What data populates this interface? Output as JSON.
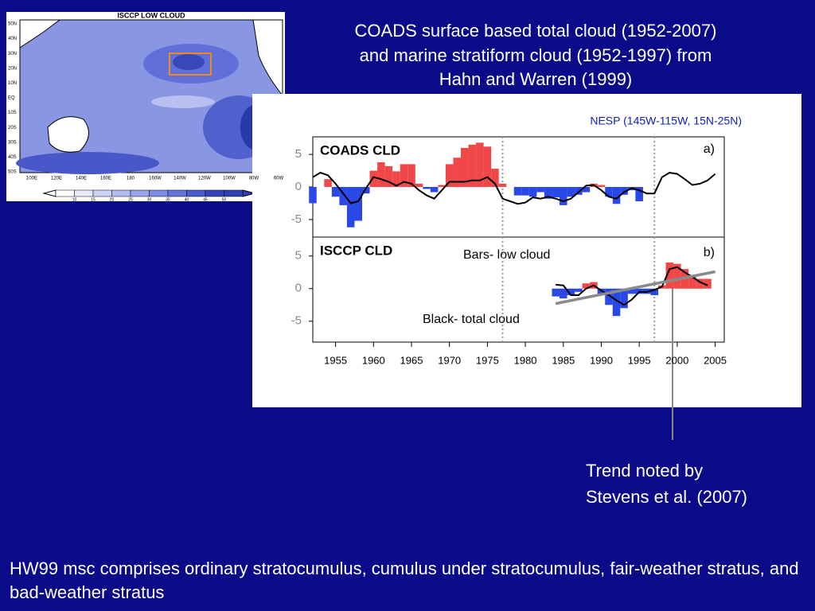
{
  "title_lines": [
    "COADS surface based total cloud (1952-2007)",
    "and marine stratiform cloud  (1952-1997) from",
    "Hahn and Warren (1999)"
  ],
  "map": {
    "title": "ISCCP LOW CLOUD",
    "lat_labels": [
      "50N",
      "40N",
      "30N",
      "20N",
      "10N",
      "EQ",
      "10S",
      "20S",
      "30S",
      "40S",
      "50S"
    ],
    "lon_labels": [
      "100E",
      "120E",
      "140E",
      "160E",
      "180",
      "160W",
      "140W",
      "120W",
      "100W",
      "80W",
      "60W"
    ],
    "colorbar_labels": [
      "10",
      "15",
      "20",
      "25",
      "30",
      "35",
      "40",
      "45",
      "50"
    ]
  },
  "chart_data": [
    {
      "type": "bar",
      "title": "COADS  CLD",
      "panel_label": "a)",
      "subtitle": "NESP (145W-115W, 15N-25N)",
      "xlim": [
        1952,
        2006.2
      ],
      "ylim": [
        -7.7,
        7.7
      ],
      "yticks": [
        -5,
        0,
        5
      ],
      "reference_lines": [
        1977,
        1997
      ],
      "positive_color": "#f04848",
      "negative_color": "#2a48e6",
      "series": [
        {
          "kind": "bar",
          "x": [
            1952,
            1953,
            1954,
            1955,
            1956,
            1957,
            1958,
            1959,
            1960,
            1961,
            1962,
            1963,
            1964,
            1965,
            1966,
            1967,
            1968,
            1969,
            1970,
            1971,
            1972,
            1973,
            1974,
            1975,
            1976,
            1977,
            1978,
            1979,
            1980,
            1981,
            1982,
            1983,
            1984,
            1985,
            1986,
            1987,
            1988,
            1989,
            1990,
            1991,
            1992,
            1993,
            1994,
            1995,
            1996,
            1997
          ],
          "values": [
            -2.5,
            0,
            1.2,
            -1.5,
            -2.8,
            -6.2,
            -5.2,
            -1,
            2.5,
            3.8,
            3.2,
            2.4,
            3.5,
            3.5,
            0.5,
            -0.3,
            -0.8,
            0.3,
            3.5,
            4.5,
            6,
            6.5,
            6.8,
            6.2,
            2.8,
            0.5,
            0,
            -1.3,
            -1.3,
            -1.5,
            -0.8,
            -1.8,
            -1.6,
            -2.8,
            -1.5,
            -1.2,
            -0.8,
            0.5,
            0.3,
            -1.5,
            -2.6,
            -1.2,
            -0.5,
            -2.2,
            0,
            0
          ]
        },
        {
          "kind": "line",
          "color": "#000000",
          "x": [
            1952,
            1953,
            1954,
            1955,
            1956,
            1957,
            1958,
            1959,
            1960,
            1961,
            1962,
            1963,
            1964,
            1965,
            1966,
            1967,
            1968,
            1969,
            1970,
            1971,
            1972,
            1973,
            1974,
            1975,
            1976,
            1977,
            1978,
            1979,
            1980,
            1981,
            1982,
            1983,
            1984,
            1985,
            1986,
            1987,
            1988,
            1989,
            1990,
            1991,
            1992,
            1993,
            1994,
            1995,
            1996,
            1997,
            1998,
            1999,
            2000,
            2001,
            2002,
            2003,
            2004,
            2005
          ],
          "values": [
            1.5,
            2.2,
            1.8,
            0.5,
            -1.0,
            -2.5,
            -2.2,
            -0.2,
            1.5,
            1.2,
            0.8,
            0.2,
            0.8,
            0.5,
            -0.5,
            -1.3,
            -1.8,
            -0.5,
            0.8,
            0.8,
            0.8,
            1.0,
            1.0,
            1.5,
            0.5,
            -1.8,
            -2.2,
            -2.6,
            -2.4,
            -1.6,
            -1.8,
            -1.5,
            -1.8,
            -2.2,
            -1.8,
            -0.8,
            0.2,
            0.3,
            -0.5,
            -1.5,
            -1.8,
            -0.8,
            -0.2,
            -0.5,
            -1.0,
            -1.0,
            1.5,
            2.2,
            2.0,
            1.2,
            0.3,
            0.5,
            1.0,
            2.0
          ]
        }
      ]
    },
    {
      "type": "bar",
      "title": "ISCCP  CLD",
      "panel_label": "b)",
      "annotations": [
        "Bars- low cloud",
        "Black- total cloud"
      ],
      "xlim": [
        1952,
        2006.2
      ],
      "ylim": [
        -8.2,
        7.9
      ],
      "yticks": [
        -5,
        0,
        5
      ],
      "xticks": [
        1955,
        1960,
        1965,
        1970,
        1975,
        1980,
        1985,
        1990,
        1995,
        2000,
        2005
      ],
      "reference_lines": [
        1977,
        1997
      ],
      "positive_color": "#f04848",
      "negative_color": "#2a48e6",
      "series": [
        {
          "kind": "bar",
          "x": [
            1984,
            1985,
            1986,
            1987,
            1988,
            1989,
            1990,
            1991,
            1992,
            1993,
            1994,
            1995,
            1996,
            1997,
            1998,
            1999,
            2000,
            2001,
            2002,
            2003,
            2004
          ],
          "values": [
            -1.2,
            -1.5,
            -1,
            -0.5,
            0.8,
            1,
            -0.8,
            -2.5,
            -4.2,
            -3,
            -0.8,
            -0.8,
            -0.8,
            -1,
            0.5,
            4,
            3.8,
            3,
            2,
            1.5,
            1.5
          ]
        },
        {
          "kind": "line",
          "color": "#000000",
          "x": [
            1984,
            1985,
            1986,
            1987,
            1988,
            1989,
            1990,
            1991,
            1992,
            1993,
            1994,
            1995,
            1996,
            1997,
            1998,
            1999,
            2000,
            2001,
            2002,
            2003,
            2004
          ],
          "values": [
            0.6,
            0.5,
            -1,
            -1,
            0,
            0.5,
            -0.3,
            -1,
            -1.8,
            -2.5,
            -1.7,
            -0.5,
            -0.5,
            -0.2,
            0.3,
            3,
            3.3,
            2.5,
            1.8,
            1,
            0.5
          ]
        },
        {
          "kind": "trend",
          "color": "#8a8a8a",
          "x": [
            1984,
            2005
          ],
          "values": [
            -2.3,
            2.6
          ]
        }
      ]
    }
  ],
  "callout_lines": [
    "Trend noted by",
    "Stevens et al. (2007)"
  ],
  "footer": "HW99 msc comprises ordinary stratocumulus, cumulus under stratocumulus, fair-weather stratus, and bad-weather stratus"
}
